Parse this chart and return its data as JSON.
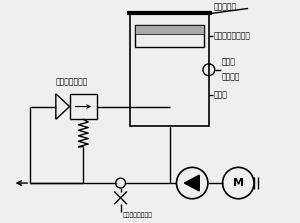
{
  "bg_color": "#efefef",
  "line_color": "#000000",
  "text_color": "#000000",
  "labels": {
    "tank_lid": "タンクフタ",
    "follow_plate": "フォロープレート",
    "nipple_line1": "補給口",
    "nipple_line2": "ニップル",
    "tank": "タンク",
    "relief_valve": "リリーフバルブ",
    "air_plug": "エアー抜きプラグ"
  }
}
